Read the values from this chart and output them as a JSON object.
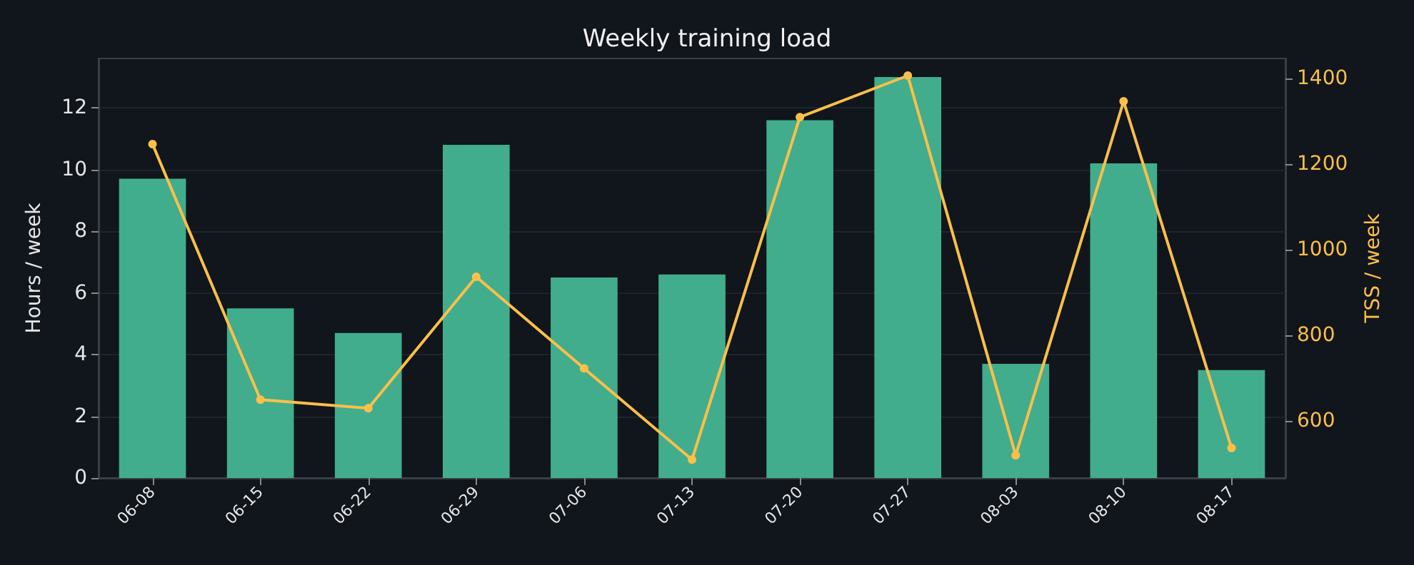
{
  "chart_data": {
    "type": "bar",
    "title": "Weekly training load",
    "ylabel": "Hours / week",
    "y2label": "TSS / week",
    "categories": [
      "06-08",
      "06-15",
      "06-22",
      "06-29",
      "07-06",
      "07-13",
      "07-20",
      "07-27",
      "08-03",
      "08-10",
      "08-17"
    ],
    "series": [
      {
        "color": "#45b592",
        "values": [
          9.7,
          5.5,
          4.7,
          10.8,
          6.5,
          6.6,
          11.6,
          13.0,
          3.7,
          10.2,
          3.5
        ]
      },
      {
        "type": "line",
        "axis": "y2",
        "color": "#fbbf4a",
        "marker": "circle",
        "values": [
          1247,
          650,
          630,
          937,
          723,
          510,
          1310,
          1407,
          520,
          1347,
          537
        ]
      }
    ],
    "ylim": [
      0,
      13.6
    ],
    "yticks": [
      0,
      2,
      4,
      6,
      8,
      10,
      12
    ],
    "y2lim": [
      467,
      1447
    ],
    "y2ticks": [
      600,
      800,
      1000,
      1200,
      1400
    ],
    "grid": "y"
  }
}
